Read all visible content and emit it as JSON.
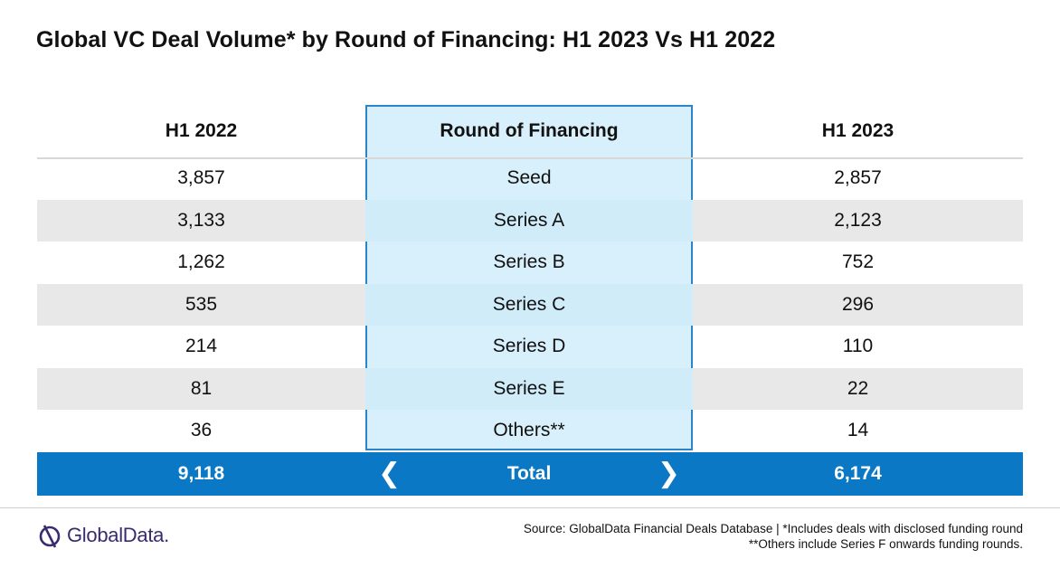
{
  "title": "Global VC Deal Volume* by Round of Financing: H1 2023 Vs H1 2022",
  "chart_data": {
    "type": "table",
    "columns": [
      "H1 2022",
      "Round of Financing",
      "H1 2023"
    ],
    "rows": [
      {
        "h1_2022": "3,857",
        "round": "Seed",
        "h1_2023": "2,857"
      },
      {
        "h1_2022": "3,133",
        "round": "Series A",
        "h1_2023": "2,123"
      },
      {
        "h1_2022": "1,262",
        "round": "Series B",
        "h1_2023": "752"
      },
      {
        "h1_2022": "535",
        "round": "Series C",
        "h1_2023": "296"
      },
      {
        "h1_2022": "214",
        "round": "Series D",
        "h1_2023": "110"
      },
      {
        "h1_2022": "81",
        "round": "Series E",
        "h1_2023": "22"
      },
      {
        "h1_2022": "36",
        "round": "Others**",
        "h1_2023": "14"
      }
    ],
    "total": {
      "h1_2022": "9,118",
      "label": "Total",
      "h1_2023": "6,174"
    }
  },
  "footer": {
    "logo_text": "GlobalData.",
    "source_line1": "Source:  GlobalData Financial Deals Database | *Includes deals with disclosed funding round",
    "source_line2": "**Others include Series F onwards funding rounds."
  },
  "colors": {
    "accent": "#0a78c4",
    "highlight_column": "#d8f0fb",
    "shaded_row": "#e8e8e8",
    "logo": "#3a2a6e"
  }
}
